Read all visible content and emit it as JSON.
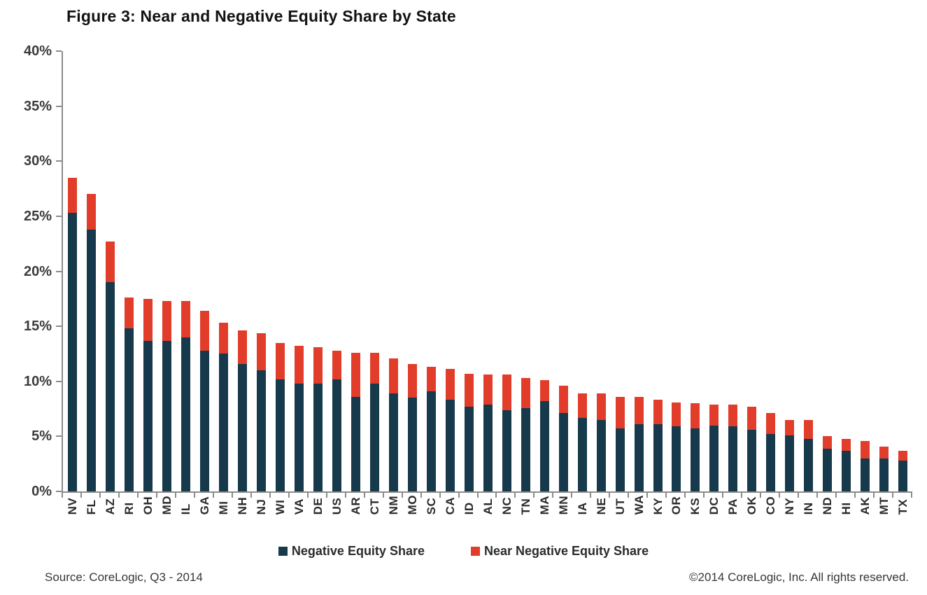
{
  "title": "Figure 3: Near and Negative Equity Share by State",
  "legend": {
    "negative_label": "Negative Equity Share",
    "near_label": "Near Negative Equity Share"
  },
  "footer": {
    "source": "Source: CoreLogic, Q3 - 2014",
    "copyright": "©2014 CoreLogic, Inc. All rights reserved."
  },
  "colors": {
    "negative": "#17394c",
    "near": "#e23d2a",
    "axis": "#8c8c8c"
  },
  "chart_data": {
    "type": "bar",
    "stacked": true,
    "title": "Figure 3: Near and Negative Equity Share by State",
    "xlabel": "",
    "ylabel": "",
    "ylim": [
      0,
      40
    ],
    "ytick_step": 5,
    "ytick_labels": [
      "40%",
      "35%",
      "30%",
      "25%",
      "20%",
      "15%",
      "10%",
      "5%",
      "0%"
    ],
    "grid": false,
    "legend_position": "bottom",
    "categories": [
      "NV",
      "FL",
      "AZ",
      "RI",
      "OH",
      "MD",
      "IL",
      "GA",
      "MI",
      "NH",
      "NJ",
      "WI",
      "VA",
      "DE",
      "US",
      "AR",
      "CT",
      "NM",
      "MO",
      "SC",
      "CA",
      "ID",
      "AL",
      "NC",
      "TN",
      "MA",
      "MN",
      "IA",
      "NE",
      "UT",
      "WA",
      "KY",
      "OR",
      "KS",
      "DC",
      "PA",
      "OK",
      "CO",
      "NY",
      "IN",
      "ND",
      "HI",
      "AK",
      "MT",
      "TX"
    ],
    "series": [
      {
        "name": "Negative Equity Share",
        "color_key": "negative",
        "values": [
          25.3,
          23.8,
          19.0,
          14.8,
          13.7,
          13.7,
          14.0,
          12.8,
          12.5,
          11.6,
          11.0,
          10.2,
          9.8,
          9.8,
          10.2,
          8.6,
          9.8,
          8.9,
          8.5,
          9.1,
          8.3,
          7.7,
          7.9,
          7.4,
          7.6,
          8.2,
          7.1,
          6.7,
          6.5,
          5.7,
          6.1,
          6.1,
          5.9,
          5.7,
          6.0,
          5.9,
          5.6,
          5.2,
          5.1,
          4.8,
          3.9,
          3.7,
          3.0,
          3.0,
          2.8
        ]
      },
      {
        "name": "Near Negative Equity Share",
        "color_key": "near",
        "values": [
          3.2,
          3.2,
          3.7,
          2.8,
          3.8,
          3.6,
          3.3,
          3.6,
          2.8,
          3.0,
          3.4,
          3.3,
          3.4,
          3.3,
          2.6,
          4.0,
          2.8,
          3.2,
          3.1,
          2.2,
          2.8,
          3.0,
          2.7,
          3.2,
          2.7,
          1.9,
          2.5,
          2.2,
          2.4,
          2.9,
          2.5,
          2.2,
          2.2,
          2.3,
          1.9,
          2.0,
          2.1,
          1.9,
          1.4,
          1.7,
          1.1,
          1.1,
          1.6,
          1.1,
          0.9
        ]
      }
    ]
  }
}
